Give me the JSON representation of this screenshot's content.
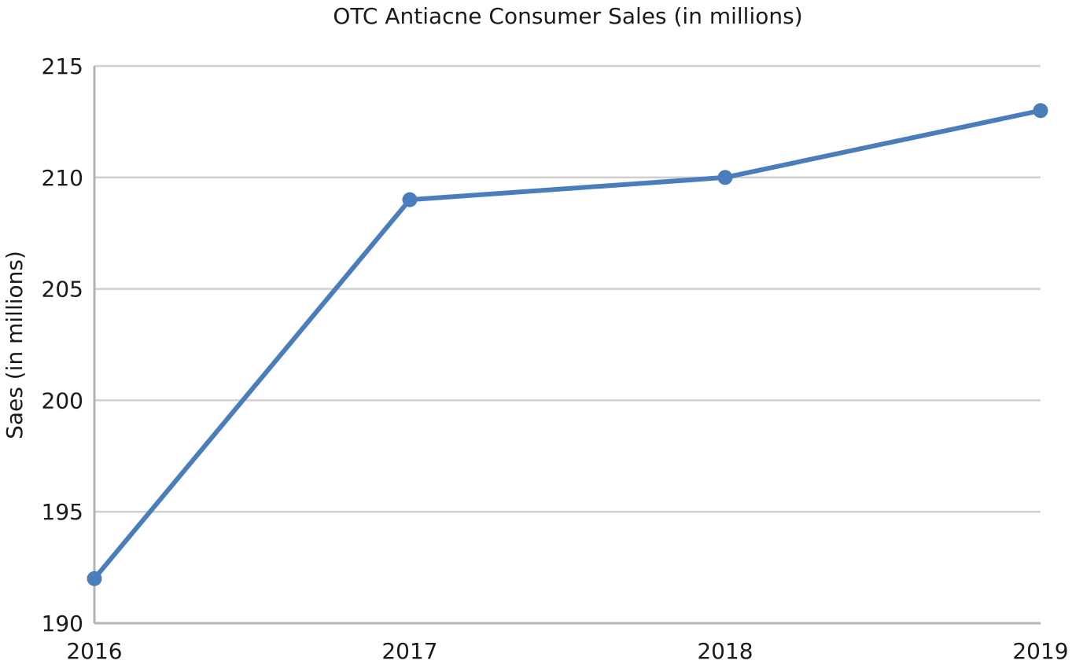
{
  "chart_data": {
    "type": "line",
    "title": "OTC Antiacne Consumer Sales (in millions)",
    "xlabel": "",
    "ylabel": "Saes (in millions)",
    "categories": [
      "2016",
      "2017",
      "2018",
      "2019"
    ],
    "series": [
      {
        "values": [
          192,
          209,
          210,
          213
        ],
        "color": "#4a7ebb"
      }
    ],
    "ylim": [
      190,
      215
    ],
    "yticks": [
      190,
      195,
      200,
      205,
      210,
      215
    ],
    "grid": true,
    "gridColor": "#d0d0d0",
    "axisColor": "#b3b3b3",
    "legend": "none"
  }
}
